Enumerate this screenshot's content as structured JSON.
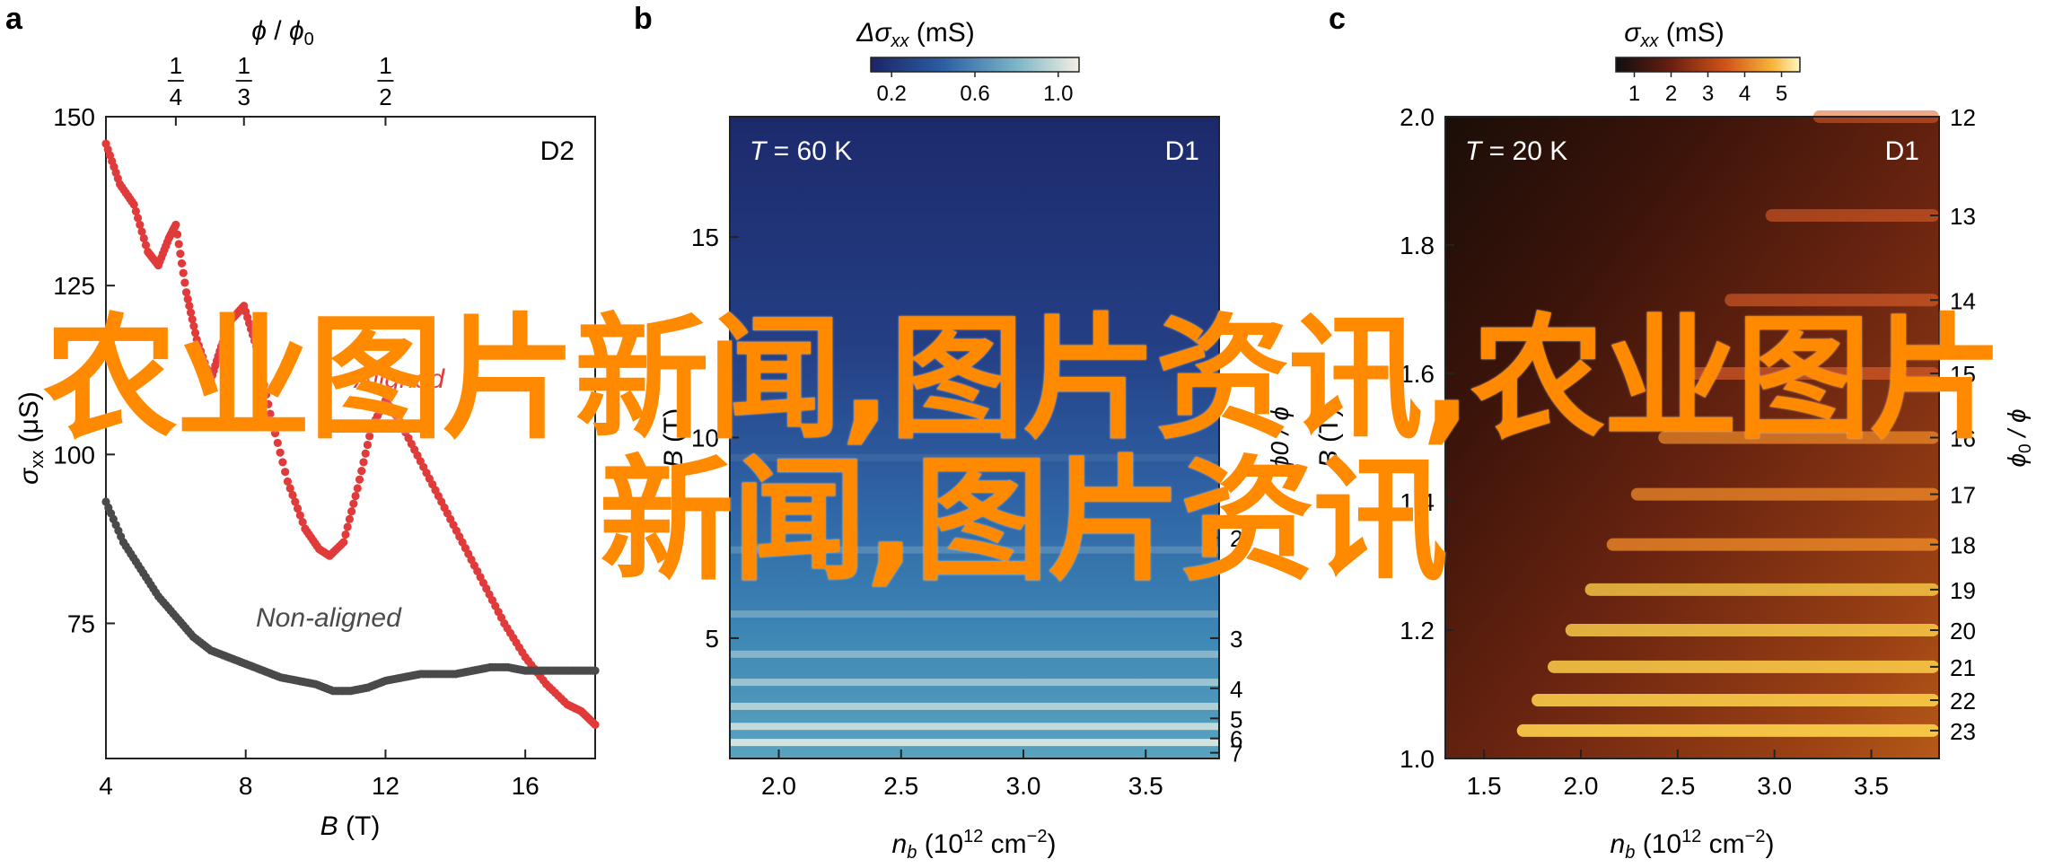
{
  "panels": {
    "a": {
      "letter": "a",
      "tag": "D2",
      "top_axis": {
        "label_phi": "ϕ",
        "label_sep": " / ",
        "label_phi0": "ϕ",
        "label_sub0": "0",
        "ticks": [
          {
            "num": "1",
            "den": "4",
            "B": 6.0
          },
          {
            "num": "1",
            "den": "3",
            "B": 7.95
          },
          {
            "num": "1",
            "den": "2",
            "B": 12.0
          }
        ]
      },
      "ylabel_sigma": "σ",
      "ylabel_sub": "xx",
      "ylabel_unit": " (μS)",
      "xlabel_B": "B",
      "xlabel_unit": " (T)"
    },
    "b": {
      "letter": "b",
      "tag": "D1",
      "temp_T": "T",
      "temp_val": " = 60 K",
      "colorbar": {
        "label_delta": "Δσ",
        "label_sub": "xx",
        "label_unit": " (mS)",
        "ticks": [
          "0.2",
          "0.6",
          "1.0"
        ]
      },
      "ylabel_B": "B",
      "ylabel_unit": " (T)",
      "xlabel_n": "n",
      "xlabel_sub": "b",
      "xlabel_unit": " (10",
      "xlabel_exp": "12",
      "xlabel_cm": " cm",
      "xlabel_cmexp": "−2",
      "xlabel_close": ")",
      "right_ticks": [
        "2",
        "3",
        "4",
        "5",
        "6",
        "7"
      ],
      "right_label": "ϕ0 / ϕ"
    },
    "c": {
      "letter": "c",
      "tag": "D1",
      "temp_T": "T",
      "temp_val": " = 20 K",
      "colorbar": {
        "label_sigma": "σ",
        "label_sub": "xx",
        "label_unit": " (mS)",
        "ticks": [
          "1",
          "2",
          "3",
          "4",
          "5"
        ]
      },
      "ylabel_B": "B",
      "ylabel_unit": " (T)",
      "xlabel_n": "n",
      "xlabel_sub": "b",
      "xlabel_unit": " (10",
      "xlabel_exp": "12",
      "xlabel_cm": " cm",
      "xlabel_cmexp": "−2",
      "xlabel_close": ")",
      "right_label_phi0": "ϕ",
      "right_label_sub": "0",
      "right_label_rest": " / ϕ"
    }
  },
  "watermark": {
    "line1": "农业图片新闻,图片资讯,农业图片",
    "line2": "新闻,图片资讯"
  },
  "colors": {
    "aligned": "#e03a3a",
    "non_aligned": "#4a4a4a",
    "watermark": "#ff8a00"
  },
  "chart_data": [
    {
      "type": "line",
      "xlabel": "B (T)",
      "ylabel": "σxx (μS)",
      "xlim": [
        4,
        18
      ],
      "ylim": [
        55,
        150
      ],
      "x_ticks": [
        "4",
        "8",
        "12",
        "16"
      ],
      "y_ticks": [
        "75",
        "100",
        "125",
        "150"
      ],
      "series": [
        {
          "name": "Aligned",
          "color": "#e03a3a",
          "x": [
            4.0,
            4.4,
            4.8,
            5.2,
            5.5,
            5.8,
            6.0,
            6.3,
            6.6,
            7.0,
            7.3,
            7.6,
            7.95,
            8.3,
            8.7,
            9.2,
            9.7,
            10.1,
            10.4,
            10.8,
            11.2,
            11.6,
            12.0,
            12.4,
            13.0,
            13.6,
            14.2,
            14.8,
            15.4,
            16.0,
            16.6,
            17.2,
            17.6,
            18.0
          ],
          "y": [
            146,
            140,
            137,
            130,
            128,
            132,
            134,
            124,
            117,
            111,
            116,
            120,
            122,
            116,
            106,
            96,
            89,
            86,
            85,
            87,
            95,
            104,
            108,
            105,
            99,
            93,
            87,
            81,
            75,
            70,
            66,
            63,
            62,
            60
          ]
        },
        {
          "name": "Non-aligned",
          "color": "#4a4a4a",
          "x": [
            4.0,
            4.5,
            5.0,
            5.5,
            6.0,
            6.5,
            7.0,
            7.5,
            8.0,
            8.5,
            9.0,
            9.5,
            10.0,
            10.5,
            11.0,
            11.5,
            12.0,
            12.5,
            13.0,
            13.5,
            14.0,
            14.5,
            15.0,
            15.5,
            16.0,
            16.5,
            17.0,
            17.5,
            18.0
          ],
          "y": [
            93,
            87,
            83,
            79,
            76,
            73,
            71,
            70,
            69,
            68,
            67,
            66.5,
            66,
            65,
            65,
            65.5,
            66.5,
            67,
            67.5,
            67.5,
            67.5,
            68,
            68.5,
            68.5,
            68,
            68,
            68,
            68,
            68
          ]
        }
      ],
      "annotations": [
        "Aligned",
        "Non-aligned"
      ]
    },
    {
      "type": "heatmap",
      "xlabel": "nb (1012 cm−2)",
      "ylabel": "B (T)",
      "xlim": [
        1.8,
        3.8
      ],
      "ylim": [
        2,
        18
      ],
      "x_ticks": [
        "2.0",
        "2.5",
        "3.0",
        "3.5"
      ],
      "y_ticks": [
        "5",
        "10",
        "15"
      ],
      "colorbar_range": [
        0.1,
        1.1
      ],
      "right_axis": {
        "label": "ϕ0 / ϕ",
        "ticks": [
          2,
          3,
          4,
          5,
          6,
          7
        ]
      }
    },
    {
      "type": "heatmap",
      "xlabel": "nb (1012 cm−2)",
      "ylabel": "B (T)",
      "xlim": [
        1.3,
        3.85
      ],
      "ylim": [
        1.0,
        2.0
      ],
      "x_ticks": [
        "1.5",
        "2.0",
        "2.5",
        "3.0",
        "3.5"
      ],
      "y_ticks": [
        "1.0",
        "1.2",
        "1.4",
        "1.6",
        "1.8",
        "2.0"
      ],
      "colorbar_range": [
        0.5,
        5.5
      ],
      "right_axis": {
        "label": "ϕ0 / ϕ",
        "ticks": [
          12,
          13,
          14,
          15,
          16,
          17,
          18,
          19,
          20,
          21,
          22,
          23
        ]
      }
    }
  ]
}
